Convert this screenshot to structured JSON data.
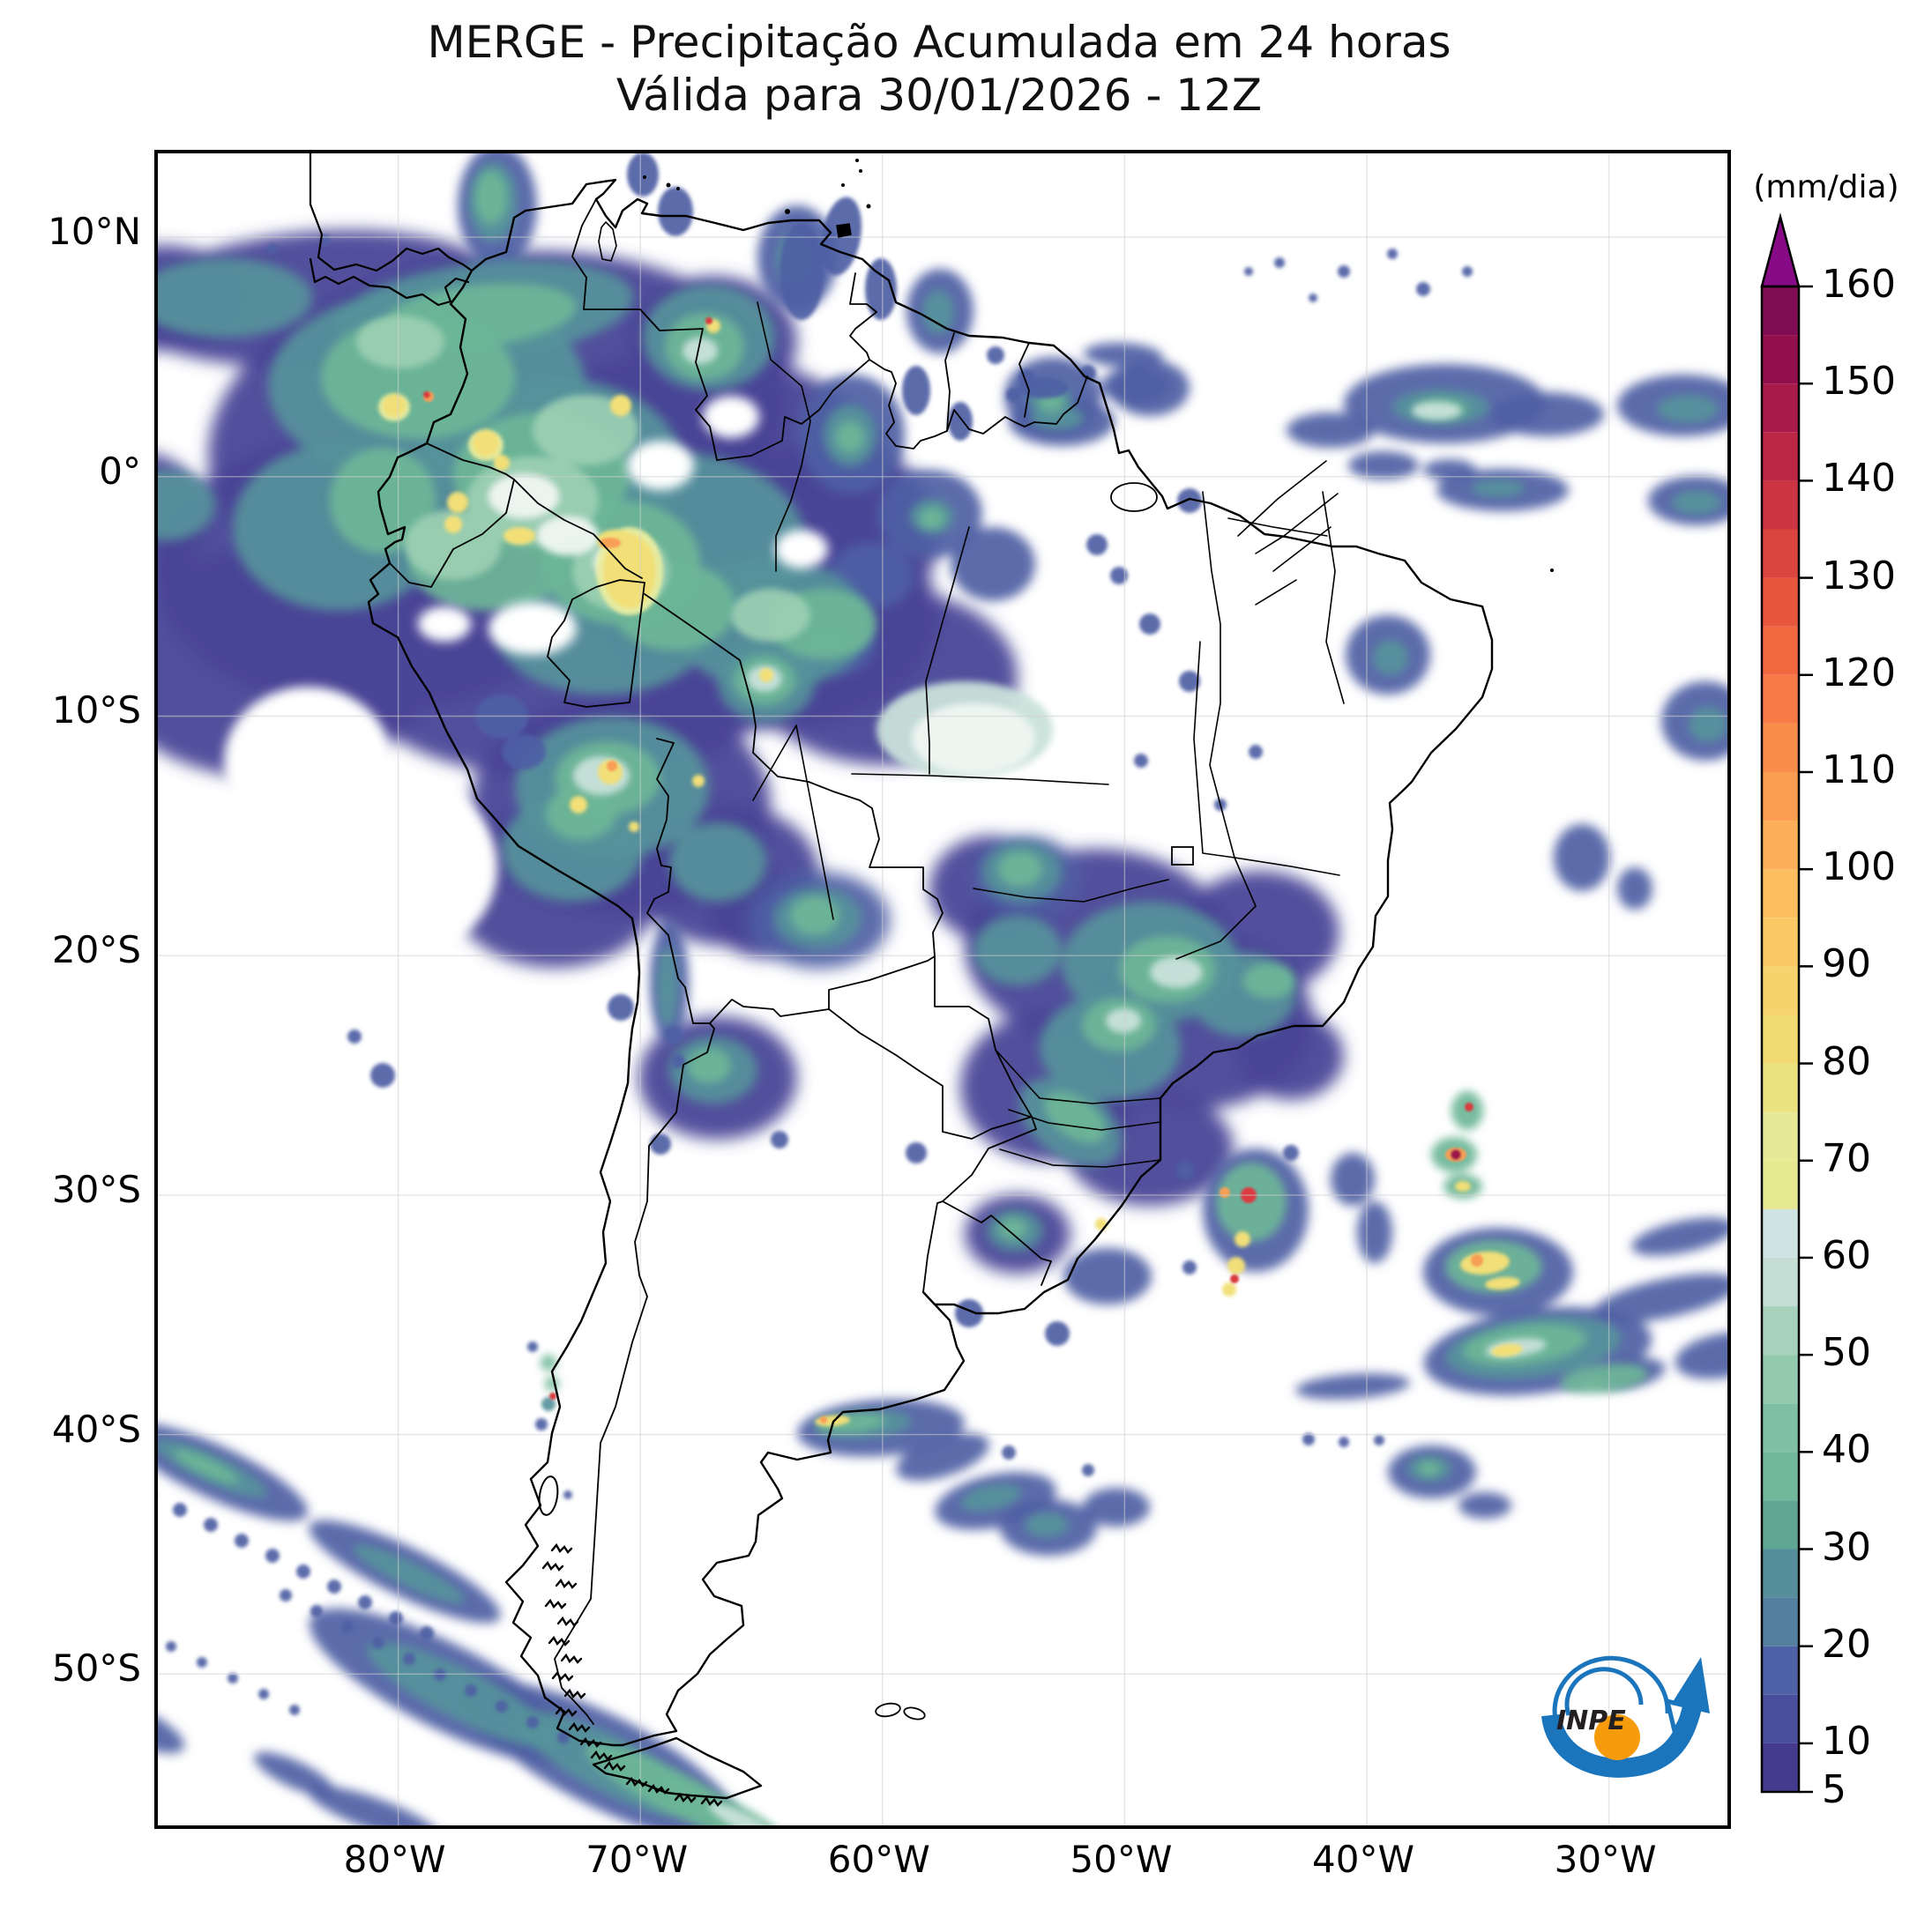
{
  "title": {
    "line1": "MERGE - Precipitação Acumulada em 24 horas",
    "line2": "Válida para 30/01/2026 - 12Z"
  },
  "axes": {
    "lat_ticks": [
      {
        "label": "10°N",
        "lat": 10
      },
      {
        "label": "0°",
        "lat": 0
      },
      {
        "label": "10°S",
        "lat": -10
      },
      {
        "label": "20°S",
        "lat": -20
      },
      {
        "label": "30°S",
        "lat": -30
      },
      {
        "label": "40°S",
        "lat": -40
      },
      {
        "label": "50°S",
        "lat": -50
      }
    ],
    "lon_ticks": [
      {
        "label": "80°W",
        "lon": -80
      },
      {
        "label": "70°W",
        "lon": -70
      },
      {
        "label": "60°W",
        "lon": -60
      },
      {
        "label": "50°W",
        "lon": -50
      },
      {
        "label": "40°W",
        "lon": -40
      },
      {
        "label": "30°W",
        "lon": -30
      }
    ]
  },
  "colorbar": {
    "unit_label": "(mm/dia)",
    "min": 5,
    "max": 160,
    "band_step": 5,
    "ticks": [
      5,
      10,
      20,
      30,
      40,
      50,
      60,
      70,
      80,
      90,
      100,
      110,
      120,
      130,
      140,
      150,
      160
    ],
    "band_colors": [
      "#453a8d",
      "#4a4f9d",
      "#4e61a7",
      "#54809f",
      "#578e9b",
      "#5fa693",
      "#70b89a",
      "#7fc0a3",
      "#93caae",
      "#a7d3bc",
      "#c4ded6",
      "#cfe4e2",
      "#e6e98f",
      "#e8e996",
      "#ece27f",
      "#f2da72",
      "#f8d26c",
      "#fbc866",
      "#fdbe60",
      "#fdae58",
      "#fc9e51",
      "#fa8d4a",
      "#f87b45",
      "#f26940",
      "#e8563d",
      "#db443f",
      "#cd3441",
      "#bb2745",
      "#a81a49",
      "#94104d",
      "#7e0d54"
    ],
    "over_color": "#870b87"
  },
  "logo": {
    "text": "INPE"
  }
}
